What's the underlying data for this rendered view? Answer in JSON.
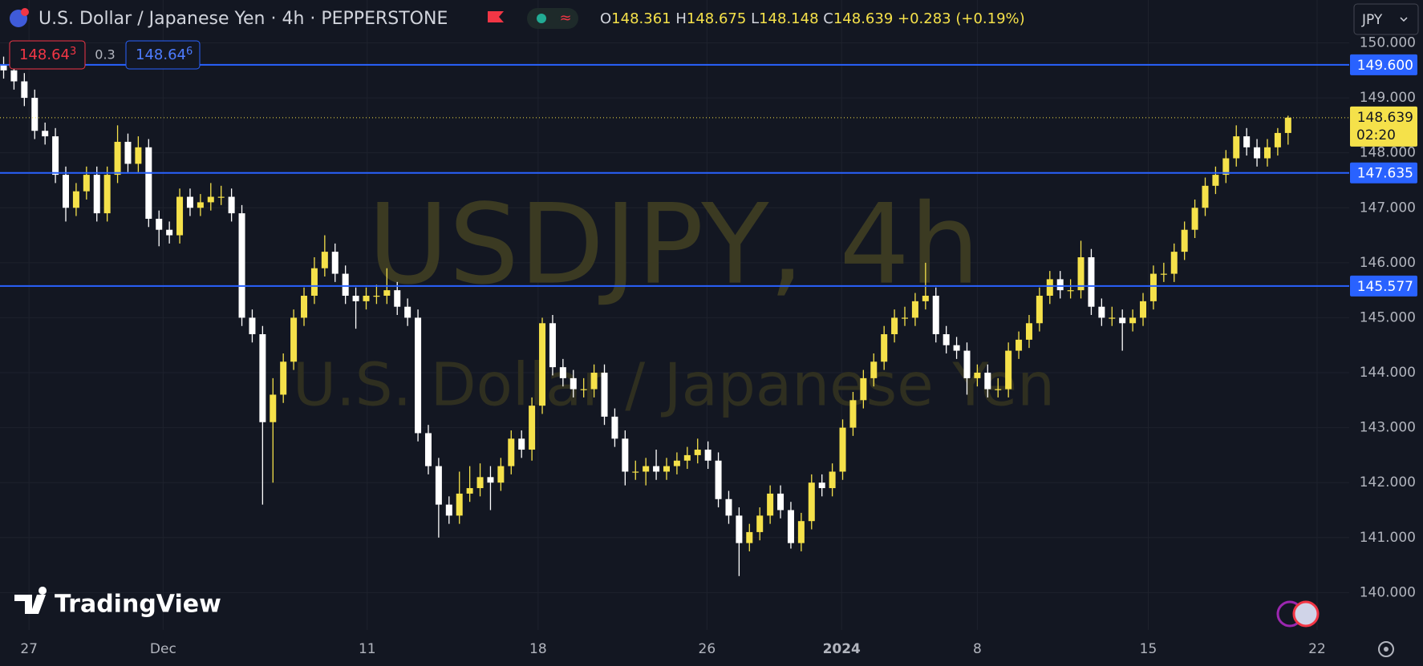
{
  "header": {
    "symbol_title": "U.S. Dollar / Japanese Yen · 4h · PEPPERSTONE",
    "ohlc_labels": [
      "O",
      "H",
      "L",
      "C"
    ],
    "change": "+0.283 (+0.19%)",
    "currency": "JPY"
  },
  "trade": {
    "sell": "148.64",
    "sell_pip": "3",
    "spread": "0.3",
    "buy": "148.64",
    "buy_pip": "6"
  },
  "watermark": {
    "symbol": "USDJPY, 4h",
    "description": "U.S. Dollar / Japanese Yen"
  },
  "countdown": "02:20",
  "logo": "TradingView",
  "chart_data": {
    "type": "candlestick",
    "open": [
      149.6,
      149.5,
      149.3,
      149.0,
      148.4,
      148.3,
      147.6,
      147.0,
      147.3,
      147.6,
      146.9,
      147.6,
      148.2,
      147.8,
      148.1,
      146.8,
      146.6,
      146.5,
      147.2,
      147.0,
      147.1,
      147.2,
      147.2,
      146.9,
      145.0,
      144.7,
      143.1,
      143.6,
      144.2,
      145.0,
      145.4,
      145.9,
      146.2,
      145.8,
      145.4,
      145.3,
      145.4,
      145.4,
      145.5,
      145.2,
      145.0,
      142.9,
      142.3,
      141.6,
      141.4,
      141.8,
      141.9,
      142.1,
      142.0,
      142.3,
      142.8,
      142.6,
      143.4,
      144.9,
      144.1,
      143.9,
      143.7,
      143.7,
      144.0,
      143.2,
      142.8,
      142.2,
      142.2,
      142.3,
      142.2,
      142.3,
      142.4,
      142.5,
      142.6,
      142.4,
      141.7,
      141.4,
      140.9,
      141.1,
      141.4,
      141.8,
      141.5,
      140.9,
      141.3,
      142.0,
      141.9,
      142.2,
      143.0,
      143.5,
      143.9,
      144.2,
      144.7,
      145.0,
      145.0,
      145.3,
      145.4,
      144.7,
      144.5,
      144.4,
      143.9,
      144.0,
      143.7,
      143.7,
      144.4,
      144.6,
      144.9,
      145.4,
      145.7,
      145.5,
      145.5,
      146.1,
      145.2,
      145.0,
      145.0,
      144.9,
      145.0,
      145.3,
      145.8,
      145.8,
      146.2,
      146.6,
      147.0,
      147.4,
      147.6,
      147.9,
      148.3,
      148.1,
      147.9,
      148.1,
      148.361
    ],
    "high": [
      149.75,
      149.65,
      149.45,
      149.15,
      148.55,
      148.45,
      147.75,
      147.45,
      147.75,
      147.75,
      147.75,
      148.5,
      148.35,
      148.3,
      148.25,
      146.95,
      146.75,
      147.35,
      147.35,
      147.25,
      147.45,
      147.4,
      147.35,
      147.05,
      145.15,
      144.85,
      143.9,
      144.35,
      145.15,
      145.55,
      146.1,
      146.5,
      146.35,
      145.95,
      145.55,
      145.55,
      145.6,
      145.9,
      145.65,
      145.35,
      145.15,
      143.05,
      142.45,
      141.75,
      142.2,
      142.3,
      142.35,
      142.3,
      142.45,
      142.95,
      142.95,
      143.55,
      145.0,
      145.05,
      144.25,
      144.05,
      143.9,
      144.15,
      144.15,
      143.35,
      142.95,
      142.4,
      142.45,
      142.6,
      142.45,
      142.55,
      142.65,
      142.8,
      142.75,
      142.55,
      141.85,
      141.55,
      141.25,
      141.55,
      141.95,
      141.95,
      141.65,
      141.45,
      142.15,
      142.15,
      142.35,
      143.15,
      143.65,
      144.05,
      144.35,
      144.85,
      145.15,
      145.2,
      145.45,
      146.0,
      145.55,
      144.85,
      144.65,
      144.55,
      144.15,
      144.15,
      143.9,
      144.55,
      144.75,
      145.05,
      145.55,
      145.85,
      145.85,
      145.7,
      146.4,
      146.25,
      145.35,
      145.2,
      145.15,
      145.15,
      145.45,
      145.95,
      146.0,
      146.35,
      146.75,
      147.15,
      147.55,
      147.75,
      148.05,
      148.5,
      148.45,
      148.25,
      148.25,
      148.45,
      148.675
    ],
    "low": [
      149.35,
      149.15,
      148.85,
      148.25,
      148.15,
      147.45,
      146.75,
      146.85,
      147.15,
      146.75,
      146.75,
      147.45,
      147.65,
      147.65,
      146.65,
      146.3,
      146.35,
      146.35,
      146.85,
      146.85,
      146.95,
      147.05,
      146.75,
      144.85,
      144.55,
      141.6,
      142.0,
      143.45,
      144.05,
      144.85,
      145.25,
      145.75,
      145.65,
      145.25,
      144.8,
      145.15,
      145.25,
      145.25,
      145.05,
      144.85,
      142.75,
      142.15,
      141.0,
      141.25,
      141.25,
      141.65,
      141.75,
      141.5,
      141.85,
      142.15,
      142.45,
      142.4,
      143.25,
      143.95,
      143.75,
      143.55,
      143.55,
      143.55,
      143.05,
      142.65,
      141.95,
      142.05,
      141.95,
      142.05,
      142.05,
      142.15,
      142.25,
      142.35,
      142.25,
      141.55,
      141.25,
      140.3,
      140.75,
      140.95,
      141.25,
      141.35,
      140.8,
      140.75,
      141.15,
      141.75,
      141.75,
      142.05,
      142.85,
      143.35,
      143.75,
      144.05,
      144.55,
      144.85,
      144.85,
      145.15,
      144.55,
      144.35,
      144.25,
      143.6,
      143.75,
      143.55,
      143.55,
      143.55,
      144.25,
      144.45,
      144.75,
      145.25,
      145.35,
      145.35,
      145.35,
      145.05,
      144.85,
      144.85,
      144.4,
      144.75,
      144.85,
      145.15,
      145.65,
      145.65,
      146.05,
      146.45,
      146.85,
      147.25,
      147.45,
      147.75,
      147.95,
      147.75,
      147.75,
      147.95,
      148.148
    ],
    "close": [
      149.5,
      149.3,
      149.0,
      148.4,
      148.3,
      147.6,
      147.0,
      147.3,
      147.6,
      146.9,
      147.6,
      148.2,
      147.8,
      148.1,
      146.8,
      146.6,
      146.5,
      147.2,
      147.0,
      147.1,
      147.2,
      147.2,
      146.9,
      145.0,
      144.7,
      143.1,
      143.6,
      144.2,
      145.0,
      145.4,
      145.9,
      146.2,
      145.8,
      145.4,
      145.3,
      145.4,
      145.4,
      145.5,
      145.2,
      145.0,
      142.9,
      142.3,
      141.6,
      141.4,
      141.8,
      141.9,
      142.1,
      142.0,
      142.3,
      142.8,
      142.6,
      143.4,
      144.9,
      144.1,
      143.9,
      143.7,
      143.7,
      144.0,
      143.2,
      142.8,
      142.2,
      142.2,
      142.3,
      142.2,
      142.3,
      142.4,
      142.5,
      142.6,
      142.4,
      141.7,
      141.4,
      140.9,
      141.1,
      141.4,
      141.8,
      141.5,
      140.9,
      141.3,
      142.0,
      141.9,
      142.2,
      143.0,
      143.5,
      143.9,
      144.2,
      144.7,
      145.0,
      145.0,
      145.3,
      145.4,
      144.7,
      144.5,
      144.4,
      143.9,
      144.0,
      143.7,
      143.7,
      144.4,
      144.6,
      144.9,
      145.4,
      145.7,
      145.5,
      145.5,
      146.1,
      145.2,
      145.0,
      145.0,
      144.9,
      145.0,
      145.3,
      145.8,
      145.8,
      146.2,
      146.6,
      147.0,
      147.4,
      147.6,
      147.9,
      148.3,
      148.1,
      147.9,
      148.1,
      148.361,
      148.639
    ],
    "up_color": "#f5e14a",
    "down_color": "#ffffff",
    "xlim": [
      -0.35,
      129.9
    ],
    "ylim": [
      139.32,
      150.78
    ],
    "xticks": [
      {
        "value": 2.45,
        "label": "27"
      },
      {
        "value": 15.4,
        "label": "Dec"
      },
      {
        "value": 35.1,
        "label": "11"
      },
      {
        "value": 51.6,
        "label": "18"
      },
      {
        "value": 67.9,
        "label": "26"
      },
      {
        "value": 80.9,
        "label": "2024"
      },
      {
        "value": 94.0,
        "label": "8"
      },
      {
        "value": 110.5,
        "label": "15"
      },
      {
        "value": 126.8,
        "label": "22"
      }
    ],
    "yticks": [
      {
        "value": 140,
        "label": "140.000"
      },
      {
        "value": 141,
        "label": "141.000"
      },
      {
        "value": 142,
        "label": "142.000"
      },
      {
        "value": 143,
        "label": "143.000"
      },
      {
        "value": 144,
        "label": "144.000"
      },
      {
        "value": 145,
        "label": "145.000"
      },
      {
        "value": 146,
        "label": "146.000"
      },
      {
        "value": 147,
        "label": "147.000"
      },
      {
        "value": 148,
        "label": "148.000"
      },
      {
        "value": 149,
        "label": "149.000"
      },
      {
        "value": 150,
        "label": "150.000"
      }
    ],
    "hlines": [
      {
        "value": 149.6,
        "label": "149.600"
      },
      {
        "value": 147.635,
        "label": "147.635"
      },
      {
        "value": 145.577,
        "label": "145.577"
      }
    ],
    "hline_color": "#2962ff",
    "grid": true
  }
}
